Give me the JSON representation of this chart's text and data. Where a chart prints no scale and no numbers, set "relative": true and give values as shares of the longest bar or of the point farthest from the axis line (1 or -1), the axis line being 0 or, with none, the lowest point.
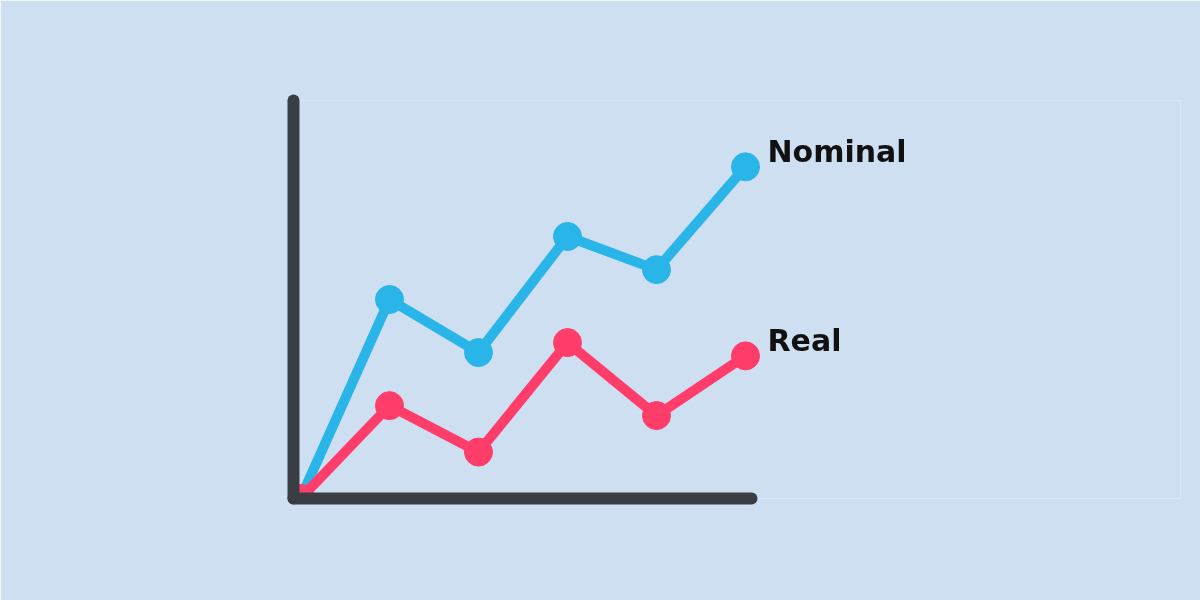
{
  "chart_data": {
    "type": "line",
    "relative": true,
    "marker": "circle",
    "line_style": "solid",
    "grid": false,
    "legend": false,
    "categories": [
      null,
      null,
      null,
      null,
      null,
      null
    ],
    "series": [
      {
        "name": "Nominal",
        "color": "#29b5e8",
        "values": [
          0,
          0.6,
          0.44,
          0.79,
          0.69,
          1.0
        ]
      },
      {
        "name": "Real",
        "color": "#ff3d6b",
        "values": [
          0,
          0.28,
          0.14,
          0.47,
          0.25,
          0.43
        ]
      }
    ]
  }
}
